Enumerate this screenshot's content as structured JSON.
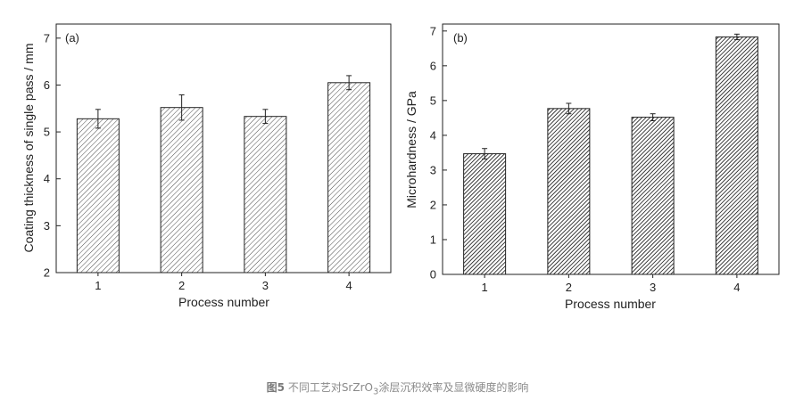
{
  "chart_data": [
    {
      "type": "bar",
      "panel_label": "(a)",
      "categories": [
        "1",
        "2",
        "3",
        "4"
      ],
      "values": [
        5.28,
        5.52,
        5.33,
        6.05
      ],
      "errors": [
        0.2,
        0.27,
        0.15,
        0.15
      ],
      "xlabel": "Process number",
      "ylabel": "Coating thickness of single pass / mm",
      "ylim": [
        2,
        7.3
      ],
      "yticks": [
        "2",
        "3",
        "4",
        "5",
        "6",
        "7"
      ],
      "fill": "hatched-light"
    },
    {
      "type": "bar",
      "panel_label": "(b)",
      "categories": [
        "1",
        "2",
        "3",
        "4"
      ],
      "values": [
        3.47,
        4.77,
        4.52,
        6.83
      ],
      "errors": [
        0.15,
        0.15,
        0.1,
        0.08
      ],
      "xlabel": "Process number",
      "ylabel": "Microhardness / GPa",
      "ylim": [
        0,
        7.2
      ],
      "yticks": [
        "0",
        "1",
        "2",
        "3",
        "4",
        "5",
        "6",
        "7"
      ],
      "fill": "hatched-dense"
    }
  ],
  "caption": {
    "figure_number": "图5",
    "text_before": "不同工艺对SrZrO",
    "subscript": "3",
    "text_after": "涂层沉积效率及显微硬度的影响"
  },
  "colors": {
    "axis": "#222222",
    "hatch_light": "#555555",
    "hatch_dense": "#111111",
    "caption": "#8a8a8a"
  }
}
